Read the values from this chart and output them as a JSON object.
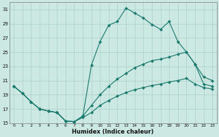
{
  "xlabel": "Humidex (Indice chaleur)",
  "bg_color": "#cce8e2",
  "grid_color": "#aacfc8",
  "line_color": "#1a7a6e",
  "ylim": [
    15,
    32
  ],
  "xlim": [
    -0.5,
    23.5
  ],
  "yticks": [
    15,
    17,
    19,
    21,
    23,
    25,
    27,
    29,
    31
  ],
  "xticks": [
    0,
    1,
    2,
    3,
    4,
    5,
    6,
    7,
    8,
    9,
    10,
    11,
    12,
    13,
    14,
    15,
    16,
    17,
    18,
    19,
    20,
    21,
    22,
    23
  ],
  "s1_x": [
    0,
    1,
    2,
    3,
    4,
    5,
    6,
    7,
    8,
    9,
    10,
    11,
    12,
    13,
    14,
    15,
    16,
    17,
    18,
    19,
    20,
    21,
    22,
    23
  ],
  "s1_y": [
    20.2,
    19.2,
    18.0,
    17.0,
    16.7,
    16.5,
    15.3,
    15.2,
    16.0,
    23.2,
    26.5,
    28.8,
    29.3,
    31.2,
    30.5,
    29.8,
    28.9,
    28.2,
    29.3,
    26.5,
    25.0,
    23.3,
    20.5,
    20.2
  ],
  "s2_x": [
    0,
    1,
    2,
    3,
    4,
    5,
    6,
    7,
    8,
    9,
    10,
    11,
    12,
    13,
    14,
    15,
    16,
    17,
    18,
    19,
    20,
    21,
    22,
    23
  ],
  "s2_y": [
    20.2,
    19.2,
    18.0,
    17.0,
    16.7,
    16.5,
    15.3,
    15.2,
    16.0,
    17.5,
    19.0,
    20.2,
    21.2,
    22.0,
    22.8,
    23.3,
    23.8,
    24.0,
    24.3,
    24.7,
    25.0,
    23.3,
    21.5,
    21.0
  ],
  "s3_x": [
    0,
    1,
    2,
    3,
    4,
    5,
    6,
    7,
    8,
    9,
    10,
    11,
    12,
    13,
    14,
    15,
    16,
    17,
    18,
    19,
    20,
    21,
    22,
    23
  ],
  "s3_y": [
    20.2,
    19.2,
    18.0,
    17.0,
    16.7,
    16.5,
    15.3,
    15.2,
    15.8,
    16.5,
    17.5,
    18.2,
    18.8,
    19.3,
    19.7,
    20.0,
    20.3,
    20.5,
    20.8,
    21.0,
    21.3,
    20.5,
    20.0,
    19.8
  ]
}
